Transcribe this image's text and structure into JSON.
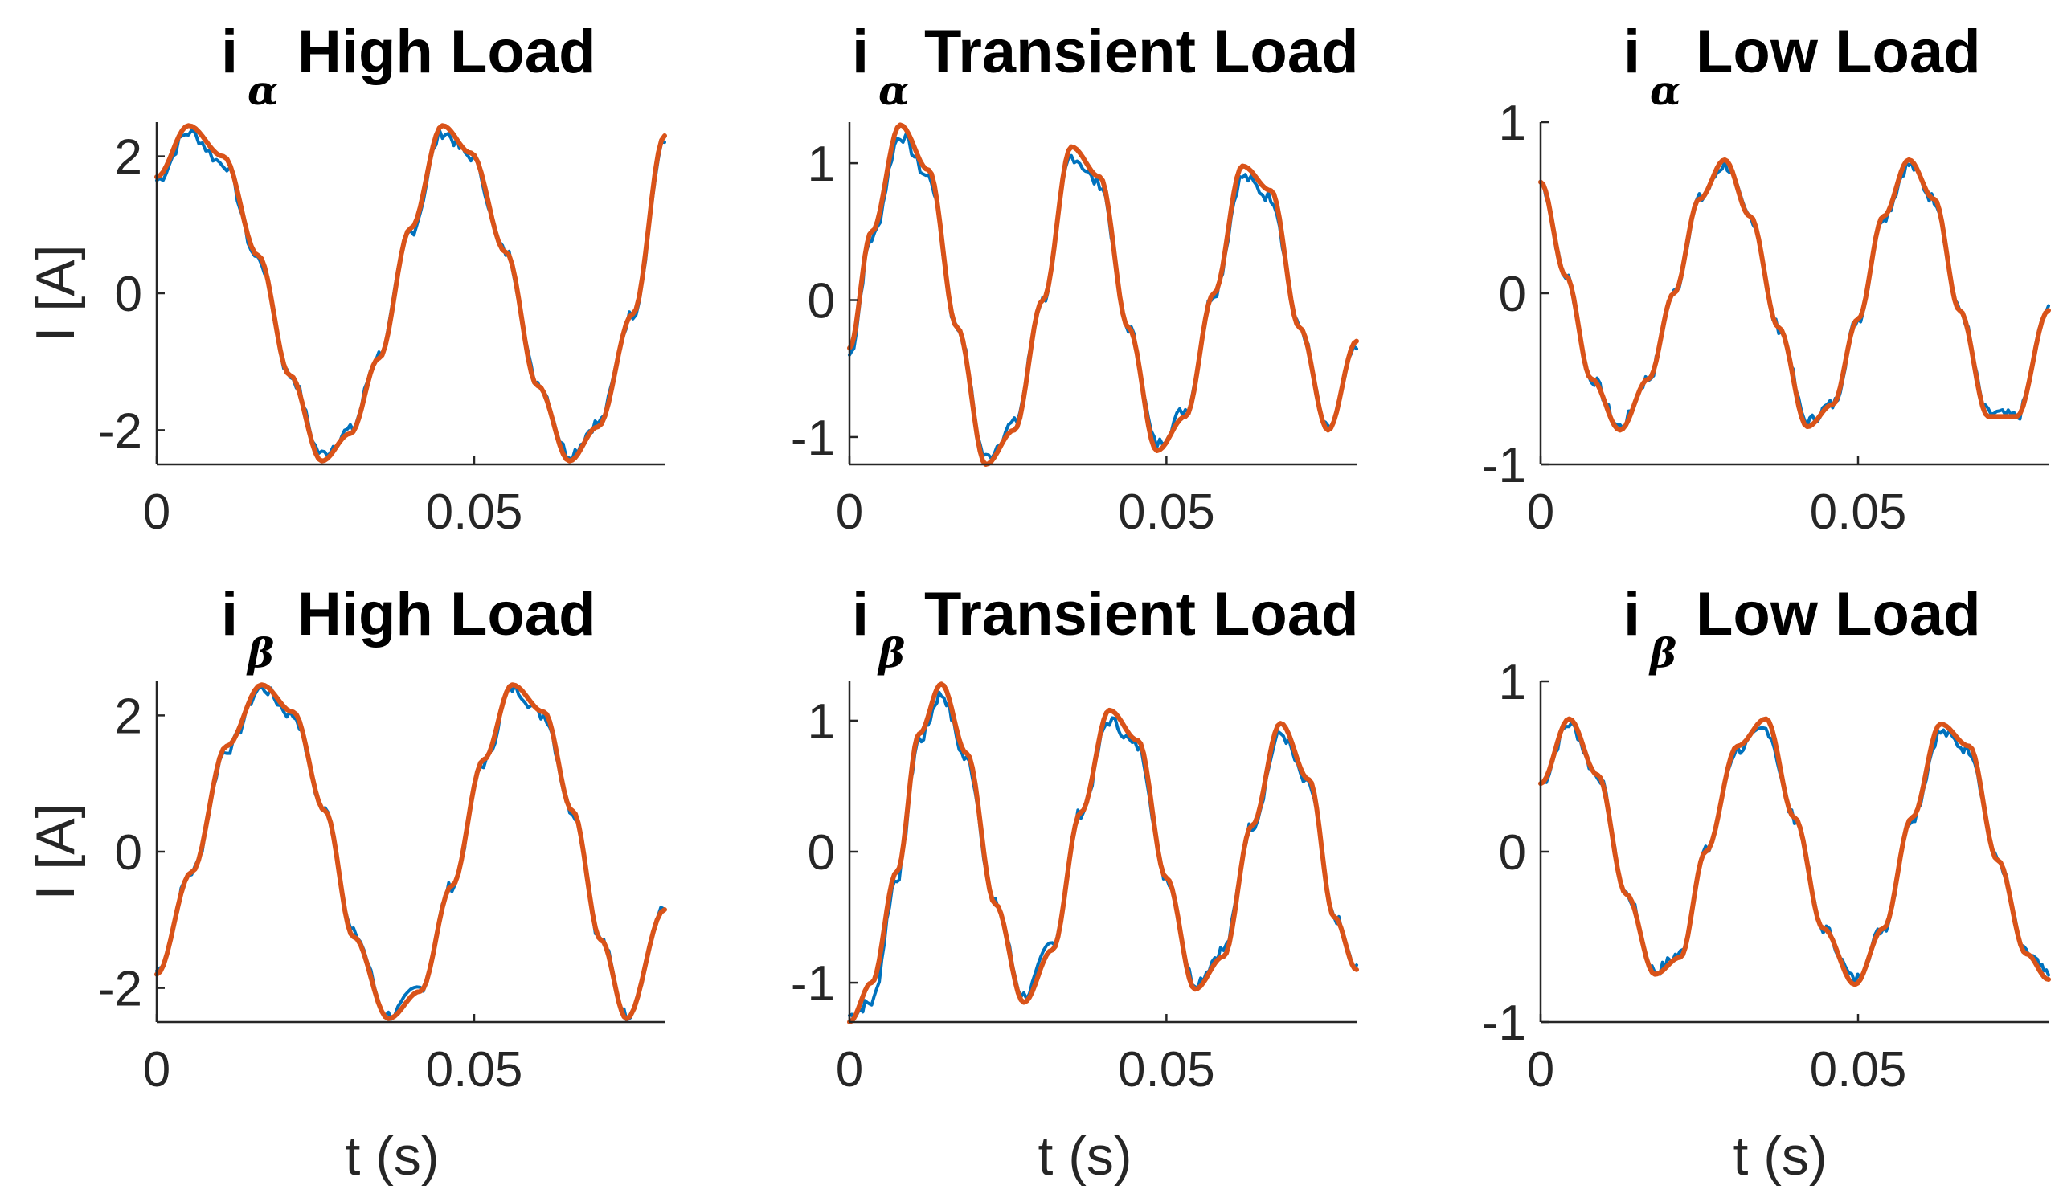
{
  "figure": {
    "colors": {
      "measured": "#0072BD",
      "fitted": "#D95319",
      "axis": "#262626"
    }
  },
  "chart_data": [
    {
      "type": "line",
      "title": "i",
      "title_subscript": "α",
      "title_rest": "High Load",
      "ylabel": "I [A]",
      "xlabel": "",
      "xlim": [
        0,
        0.08
      ],
      "ylim": [
        -2.5,
        2.5
      ],
      "xticks": [
        0,
        0.05
      ],
      "xtick_labels": [
        "0",
        "0.05"
      ],
      "yticks": [
        -2,
        0,
        2
      ],
      "ytick_labels": [
        "-2",
        "0",
        "2"
      ],
      "grid": false,
      "series": [
        {
          "role": "measured",
          "color": "#0072BD",
          "x": [
            0,
            0.005,
            0.0105,
            0.016,
            0.021,
            0.026,
            0.0305,
            0.035,
            0.04,
            0.045,
            0.0495,
            0.055,
            0.06,
            0.065,
            0.0695,
            0.075,
            0.08
          ],
          "y": [
            1.65,
            2.35,
            1.9,
            0.5,
            -1.2,
            -2.35,
            -2.0,
            -0.9,
            0.9,
            2.35,
            2.0,
            0.6,
            -1.3,
            -2.35,
            -1.9,
            -0.3,
            2.2
          ]
        },
        {
          "role": "fitted",
          "color": "#D95319",
          "x": [
            0,
            0.005,
            0.0105,
            0.016,
            0.021,
            0.026,
            0.0305,
            0.035,
            0.04,
            0.045,
            0.0495,
            0.055,
            0.06,
            0.065,
            0.0695,
            0.075,
            0.08
          ],
          "y": [
            1.7,
            2.45,
            2.0,
            0.55,
            -1.2,
            -2.45,
            -2.05,
            -0.95,
            0.95,
            2.45,
            2.05,
            0.6,
            -1.35,
            -2.45,
            -1.95,
            -0.3,
            2.3
          ]
        }
      ]
    },
    {
      "type": "line",
      "title": "i",
      "title_subscript": "α",
      "title_rest": "Transient Load",
      "ylabel": "",
      "xlabel": "",
      "xlim": [
        0,
        0.08
      ],
      "ylim": [
        -1.2,
        1.3
      ],
      "xticks": [
        0,
        0.05
      ],
      "xtick_labels": [
        "0",
        "0.05"
      ],
      "yticks": [
        -1,
        0,
        1
      ],
      "ytick_labels": [
        "-1",
        "0",
        "1"
      ],
      "grid": false,
      "series": [
        {
          "role": "measured",
          "color": "#0072BD",
          "x": [
            0,
            0.0035,
            0.008,
            0.0125,
            0.017,
            0.0215,
            0.026,
            0.0305,
            0.035,
            0.0395,
            0.044,
            0.0485,
            0.053,
            0.0575,
            0.062,
            0.0665,
            0.071,
            0.0755,
            0.08
          ],
          "y": [
            -0.4,
            0.45,
            1.2,
            0.9,
            -0.2,
            -1.15,
            -0.9,
            0.0,
            1.05,
            0.85,
            -0.2,
            -1.05,
            -0.8,
            0.05,
            0.9,
            0.75,
            -0.2,
            -0.95,
            -0.35
          ]
        },
        {
          "role": "fitted",
          "color": "#D95319",
          "x": [
            0,
            0.0035,
            0.008,
            0.0125,
            0.017,
            0.0215,
            0.026,
            0.0305,
            0.035,
            0.0395,
            0.044,
            0.0485,
            0.053,
            0.0575,
            0.062,
            0.0665,
            0.071,
            0.0755,
            0.08
          ],
          "y": [
            -0.35,
            0.5,
            1.28,
            0.95,
            -0.2,
            -1.2,
            -0.95,
            0.0,
            1.12,
            0.9,
            -0.2,
            -1.1,
            -0.85,
            0.05,
            0.98,
            0.8,
            -0.2,
            -0.95,
            -0.3
          ]
        }
      ]
    },
    {
      "type": "line",
      "title": "i",
      "title_subscript": "α",
      "title_rest": "Low Load",
      "ylabel": "",
      "xlabel": "",
      "xlim": [
        0,
        0.08
      ],
      "ylim": [
        -1,
        1
      ],
      "xticks": [
        0,
        0.05
      ],
      "xtick_labels": [
        "0",
        "0.05"
      ],
      "yticks": [
        -1,
        0,
        1
      ],
      "ytick_labels": [
        "-1",
        "0",
        "1"
      ],
      "grid": false,
      "series": [
        {
          "role": "measured",
          "color": "#0072BD",
          "x": [
            0,
            0.004,
            0.008,
            0.0125,
            0.017,
            0.021,
            0.025,
            0.029,
            0.033,
            0.0375,
            0.042,
            0.046,
            0.05,
            0.054,
            0.058,
            0.062,
            0.066,
            0.0705,
            0.075,
            0.08
          ],
          "y": [
            0.65,
            0.1,
            -0.5,
            -0.78,
            -0.5,
            0.0,
            0.55,
            0.75,
            0.45,
            -0.2,
            -0.75,
            -0.65,
            -0.15,
            0.45,
            0.75,
            0.55,
            -0.1,
            -0.7,
            -0.72,
            -0.1
          ]
        },
        {
          "role": "fitted",
          "color": "#D95319",
          "x": [
            0,
            0.004,
            0.008,
            0.0125,
            0.017,
            0.021,
            0.025,
            0.029,
            0.033,
            0.0375,
            0.042,
            0.046,
            0.05,
            0.054,
            0.058,
            0.062,
            0.066,
            0.0705,
            0.075,
            0.08
          ],
          "y": [
            0.65,
            0.1,
            -0.5,
            -0.8,
            -0.5,
            0.0,
            0.55,
            0.78,
            0.45,
            -0.2,
            -0.78,
            -0.65,
            -0.15,
            0.45,
            0.78,
            0.55,
            -0.1,
            -0.72,
            -0.72,
            -0.1
          ]
        }
      ]
    },
    {
      "type": "line",
      "title": "i",
      "title_subscript": "β",
      "title_rest": "High Load",
      "ylabel": "I [A]",
      "xlabel": "t (s)",
      "xlim": [
        0,
        0.08
      ],
      "ylim": [
        -2.5,
        2.5
      ],
      "xticks": [
        0,
        0.05
      ],
      "xtick_labels": [
        "0",
        "0.05"
      ],
      "yticks": [
        -2,
        0,
        2
      ],
      "ytick_labels": [
        "-2",
        "0",
        "2"
      ],
      "grid": false,
      "series": [
        {
          "role": "measured",
          "color": "#0072BD",
          "x": [
            0,
            0.0055,
            0.011,
            0.0165,
            0.0215,
            0.0265,
            0.031,
            0.0365,
            0.0415,
            0.0465,
            0.0515,
            0.056,
            0.061,
            0.0655,
            0.07,
            0.074,
            0.08
          ],
          "y": [
            -1.75,
            -0.3,
            1.5,
            2.4,
            2.0,
            0.6,
            -1.2,
            -2.4,
            -2.0,
            -0.5,
            1.3,
            2.4,
            2.0,
            0.6,
            -1.3,
            -2.4,
            -0.85
          ]
        },
        {
          "role": "fitted",
          "color": "#D95319",
          "x": [
            0,
            0.0055,
            0.011,
            0.0165,
            0.0215,
            0.0265,
            0.031,
            0.0365,
            0.0415,
            0.0465,
            0.0515,
            0.056,
            0.061,
            0.0655,
            0.07,
            0.074,
            0.08
          ],
          "y": [
            -1.8,
            -0.3,
            1.55,
            2.45,
            2.05,
            0.6,
            -1.25,
            -2.45,
            -2.05,
            -0.5,
            1.35,
            2.45,
            2.05,
            0.6,
            -1.3,
            -2.45,
            -0.85
          ]
        }
      ]
    },
    {
      "type": "line",
      "title": "i",
      "title_subscript": "β",
      "title_rest": "Transient Load",
      "ylabel": "",
      "xlabel": "t (s)",
      "xlim": [
        0,
        0.08
      ],
      "ylim": [
        -1.3,
        1.3
      ],
      "xticks": [
        0,
        0.05
      ],
      "xtick_labels": [
        "0",
        "0.05"
      ],
      "yticks": [
        -1,
        0,
        1
      ],
      "ytick_labels": [
        "-1",
        "0",
        "1"
      ],
      "grid": false,
      "series": [
        {
          "role": "measured",
          "color": "#0072BD",
          "x": [
            0,
            0.0035,
            0.0075,
            0.011,
            0.0145,
            0.0185,
            0.023,
            0.0275,
            0.032,
            0.0365,
            0.041,
            0.0455,
            0.05,
            0.0545,
            0.059,
            0.0635,
            0.068,
            0.0725,
            0.0765,
            0.08
          ],
          "y": [
            -1.25,
            -1.15,
            -0.2,
            0.85,
            1.2,
            0.7,
            -0.4,
            -1.1,
            -0.7,
            0.3,
            1.0,
            0.8,
            -0.2,
            -1.0,
            -0.75,
            0.2,
            0.9,
            0.5,
            -0.5,
            -0.9
          ]
        },
        {
          "role": "fitted",
          "color": "#D95319",
          "x": [
            0,
            0.0035,
            0.0075,
            0.011,
            0.0145,
            0.0185,
            0.023,
            0.0275,
            0.032,
            0.0365,
            0.041,
            0.0455,
            0.05,
            0.0545,
            0.059,
            0.0635,
            0.068,
            0.0725,
            0.0765,
            0.08
          ],
          "y": [
            -1.3,
            -1.0,
            -0.15,
            0.9,
            1.28,
            0.75,
            -0.4,
            -1.15,
            -0.75,
            0.3,
            1.08,
            0.85,
            -0.2,
            -1.05,
            -0.8,
            0.2,
            0.98,
            0.55,
            -0.5,
            -0.9
          ]
        }
      ]
    },
    {
      "type": "line",
      "title": "i",
      "title_subscript": "β",
      "title_rest": "Low Load",
      "ylabel": "",
      "xlabel": "t (s)",
      "xlim": [
        0,
        0.08
      ],
      "ylim": [
        -1,
        1
      ],
      "xticks": [
        0,
        0.05
      ],
      "xtick_labels": [
        "0",
        "0.05"
      ],
      "yticks": [
        -1,
        0,
        1
      ],
      "ytick_labels": [
        "-1",
        "0",
        "1"
      ],
      "grid": false,
      "series": [
        {
          "role": "measured",
          "color": "#0072BD",
          "x": [
            0,
            0.0045,
            0.009,
            0.0135,
            0.018,
            0.022,
            0.026,
            0.031,
            0.0355,
            0.04,
            0.0445,
            0.0495,
            0.054,
            0.0585,
            0.063,
            0.0675,
            0.072,
            0.0765,
            0.08
          ],
          "y": [
            0.4,
            0.75,
            0.45,
            -0.25,
            -0.7,
            -0.6,
            0.0,
            0.6,
            0.72,
            0.2,
            -0.45,
            -0.75,
            -0.45,
            0.2,
            0.7,
            0.6,
            -0.05,
            -0.6,
            -0.72
          ]
        },
        {
          "role": "fitted",
          "color": "#D95319",
          "x": [
            0,
            0.0045,
            0.009,
            0.0135,
            0.018,
            0.022,
            0.026,
            0.031,
            0.0355,
            0.04,
            0.0445,
            0.0495,
            0.054,
            0.0585,
            0.063,
            0.0675,
            0.072,
            0.0765,
            0.08
          ],
          "y": [
            0.4,
            0.78,
            0.45,
            -0.25,
            -0.72,
            -0.62,
            0.0,
            0.62,
            0.78,
            0.2,
            -0.45,
            -0.78,
            -0.45,
            0.2,
            0.75,
            0.62,
            -0.05,
            -0.6,
            -0.75
          ]
        }
      ]
    }
  ]
}
